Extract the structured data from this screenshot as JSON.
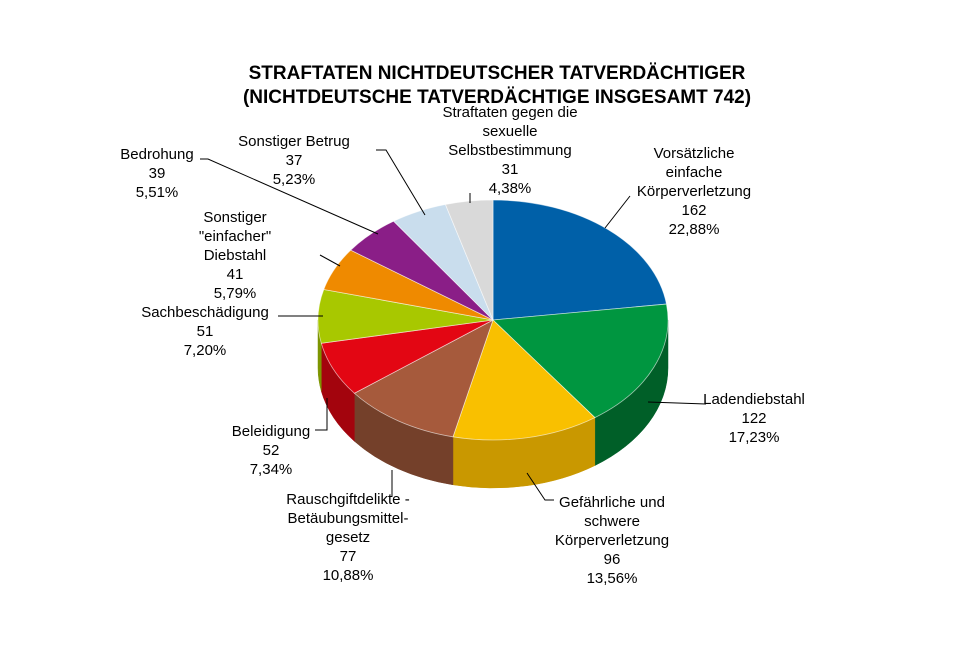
{
  "chart_data": {
    "type": "pie",
    "title": [
      "STRAFTATEN NICHTDEUTSCHER TATVERDÄCHTIGER",
      "(NICHTDEUTSCHE TATVERDÄCHTIGE INSGESAMT 742)"
    ],
    "slices": [
      {
        "label": [
          "Vorsätzliche",
          "einfache",
          "Körperverletzung"
        ],
        "value": 162,
        "percent": "22,88%",
        "color": "#0060A8",
        "side": "#00426f"
      },
      {
        "label": [
          "Ladendiebstahl"
        ],
        "value": 122,
        "percent": "17,23%",
        "color": "#009640",
        "side": "#005f28"
      },
      {
        "label": [
          "Gefährliche und",
          "schwere",
          "Körperverletzung"
        ],
        "value": 96,
        "percent": "13,56%",
        "color": "#F9C000",
        "side": "#c99800"
      },
      {
        "label": [
          "Rauschgiftdelikte -",
          "Betäubungsmittel-",
          "gesetz"
        ],
        "value": 77,
        "percent": "10,88%",
        "color": "#A65A3C",
        "side": "#74402a"
      },
      {
        "label": [
          "Beleidigung"
        ],
        "value": 52,
        "percent": "7,34%",
        "color": "#E30613",
        "side": "#a3040d"
      },
      {
        "label": [
          "Sachbeschädigung"
        ],
        "value": 51,
        "percent": "7,20%",
        "color": "#A8C800",
        "side": "#7d9500"
      },
      {
        "label": [
          "Sonstiger",
          "\"einfacher\"",
          "Diebstahl"
        ],
        "value": 41,
        "percent": "5,79%",
        "color": "#EF8A00",
        "side": "#b56900"
      },
      {
        "label": [
          "Bedrohung"
        ],
        "value": 39,
        "percent": "5,51%",
        "color": "#8A1E87",
        "side": "#621560"
      },
      {
        "label": [
          "Sonstiger Betrug"
        ],
        "value": 37,
        "percent": "5,23%",
        "color": "#C9DDED",
        "side": "#9fb3c3"
      },
      {
        "label": [
          "Straftaten gegen die",
          "sexuelle",
          "Selbstbestimmung"
        ],
        "value": 31,
        "percent": "4,38%",
        "color": "#D9D9D9",
        "side": "#aaaaaa"
      }
    ],
    "total": 742,
    "start": "12 o'clock",
    "direction": "clockwise",
    "style": "3d-tilted"
  }
}
